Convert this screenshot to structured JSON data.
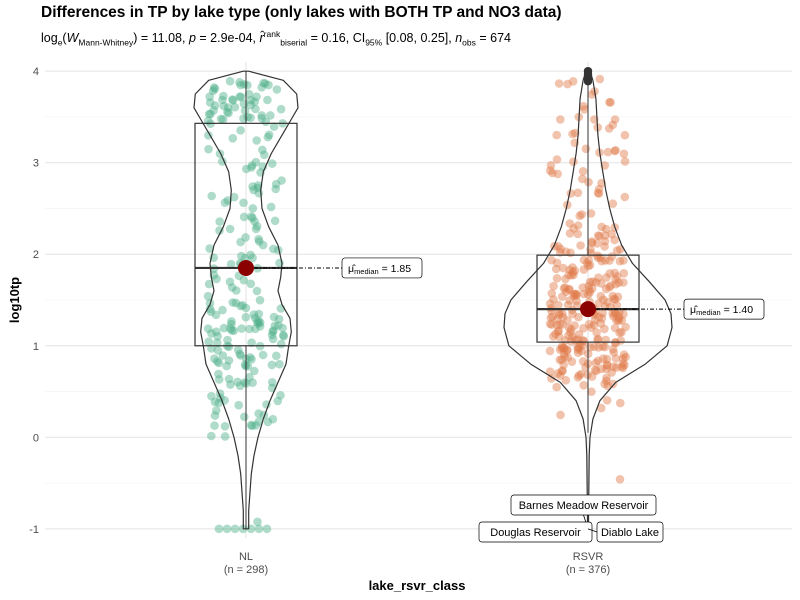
{
  "chart_data": {
    "type": "violin-box-scatter",
    "title": "Differences in TP by lake type (only lakes with BOTH TP and NO3 data)",
    "subtitle": {
      "statistic_label": "log",
      "statistic_base": "e",
      "statistic_name": "W",
      "statistic_sub": "Mann-Whitney",
      "statistic_value": "= 11.08, ",
      "p_label": "p",
      "p_value": "= 2.9e-04, ",
      "effect_label": "r̂",
      "effect_sup": "rank",
      "effect_sub": "biserial",
      "effect_value": "= 0.16, CI",
      "ci_sub": "95%",
      "ci_value": "[0.08, 0.25], ",
      "n_label": "n",
      "n_sub": "obs",
      "n_value": "= 674"
    },
    "xlabel": "lake_rsvr_class",
    "ylabel": "log10tp",
    "ylim": [
      -1.1,
      4.1
    ],
    "yticks": [
      -1,
      0,
      1,
      2,
      3,
      4
    ],
    "grid": true,
    "categories": [
      {
        "name": "NL",
        "n_label": "(n = 298)",
        "color": "#4daf8a",
        "box": {
          "q1": 1.0,
          "median": 1.85,
          "q3": 3.43,
          "whisker_low": -1.0,
          "whisker_high": 4.0
        },
        "median_marker": 1.85,
        "median_label_prefix": "μ̂",
        "median_label_sub": "median",
        "median_label_value": "= 1.85",
        "violin": [
          [
            -1.0,
            0.02
          ],
          [
            -0.8,
            0.02
          ],
          [
            -0.6,
            0.03
          ],
          [
            -0.4,
            0.04
          ],
          [
            -0.2,
            0.06
          ],
          [
            0.0,
            0.09
          ],
          [
            0.2,
            0.13
          ],
          [
            0.4,
            0.18
          ],
          [
            0.6,
            0.24
          ],
          [
            0.8,
            0.3
          ],
          [
            1.0,
            0.32
          ],
          [
            1.15,
            0.34
          ],
          [
            1.3,
            0.33
          ],
          [
            1.45,
            0.27
          ],
          [
            1.6,
            0.24
          ],
          [
            1.75,
            0.26
          ],
          [
            1.9,
            0.27
          ],
          [
            2.1,
            0.24
          ],
          [
            2.3,
            0.17
          ],
          [
            2.5,
            0.12
          ],
          [
            2.7,
            0.11
          ],
          [
            2.9,
            0.13
          ],
          [
            3.1,
            0.19
          ],
          [
            3.3,
            0.27
          ],
          [
            3.45,
            0.33
          ],
          [
            3.6,
            0.39
          ],
          [
            3.75,
            0.38
          ],
          [
            3.9,
            0.28
          ],
          [
            4.0,
            0.02
          ]
        ]
      },
      {
        "name": "RSVR",
        "n_label": "(n = 376)",
        "color": "#e07b4a",
        "box": {
          "q1": 1.04,
          "median": 1.4,
          "q3": 1.99,
          "whisker_low": 0.05,
          "whisker_high": 3.85
        },
        "median_marker": 1.4,
        "median_label_prefix": "μ̂",
        "median_label_sub": "median",
        "median_label_value": "= 1.40",
        "outliers_top": [
          3.89,
          3.92,
          3.95,
          3.97,
          4.0
        ],
        "outliers_bottom": [
          -1.0
        ],
        "violin": [
          [
            -1.0,
            0.005
          ],
          [
            -0.8,
            0.005
          ],
          [
            -0.6,
            0.008
          ],
          [
            -0.4,
            0.01
          ],
          [
            -0.2,
            0.012
          ],
          [
            0.0,
            0.02
          ],
          [
            0.2,
            0.05
          ],
          [
            0.4,
            0.12
          ],
          [
            0.6,
            0.28
          ],
          [
            0.8,
            0.58
          ],
          [
            1.0,
            0.8
          ],
          [
            1.2,
            0.85
          ],
          [
            1.35,
            0.84
          ],
          [
            1.5,
            0.78
          ],
          [
            1.7,
            0.62
          ],
          [
            1.9,
            0.45
          ],
          [
            2.1,
            0.34
          ],
          [
            2.3,
            0.27
          ],
          [
            2.5,
            0.22
          ],
          [
            2.7,
            0.18
          ],
          [
            2.9,
            0.15
          ],
          [
            3.1,
            0.12
          ],
          [
            3.3,
            0.1
          ],
          [
            3.5,
            0.09
          ],
          [
            3.7,
            0.08
          ],
          [
            3.9,
            0.05
          ],
          [
            4.0,
            0.02
          ]
        ]
      }
    ],
    "point_labels": [
      {
        "text": "Barnes Meadow Reservoir",
        "category": "RSVR",
        "y": -1.0
      },
      {
        "text": "Douglas Reservoir",
        "category": "RSVR",
        "y": -1.0
      },
      {
        "text": "Diablo Lake",
        "category": "RSVR",
        "y": -1.0
      }
    ]
  }
}
